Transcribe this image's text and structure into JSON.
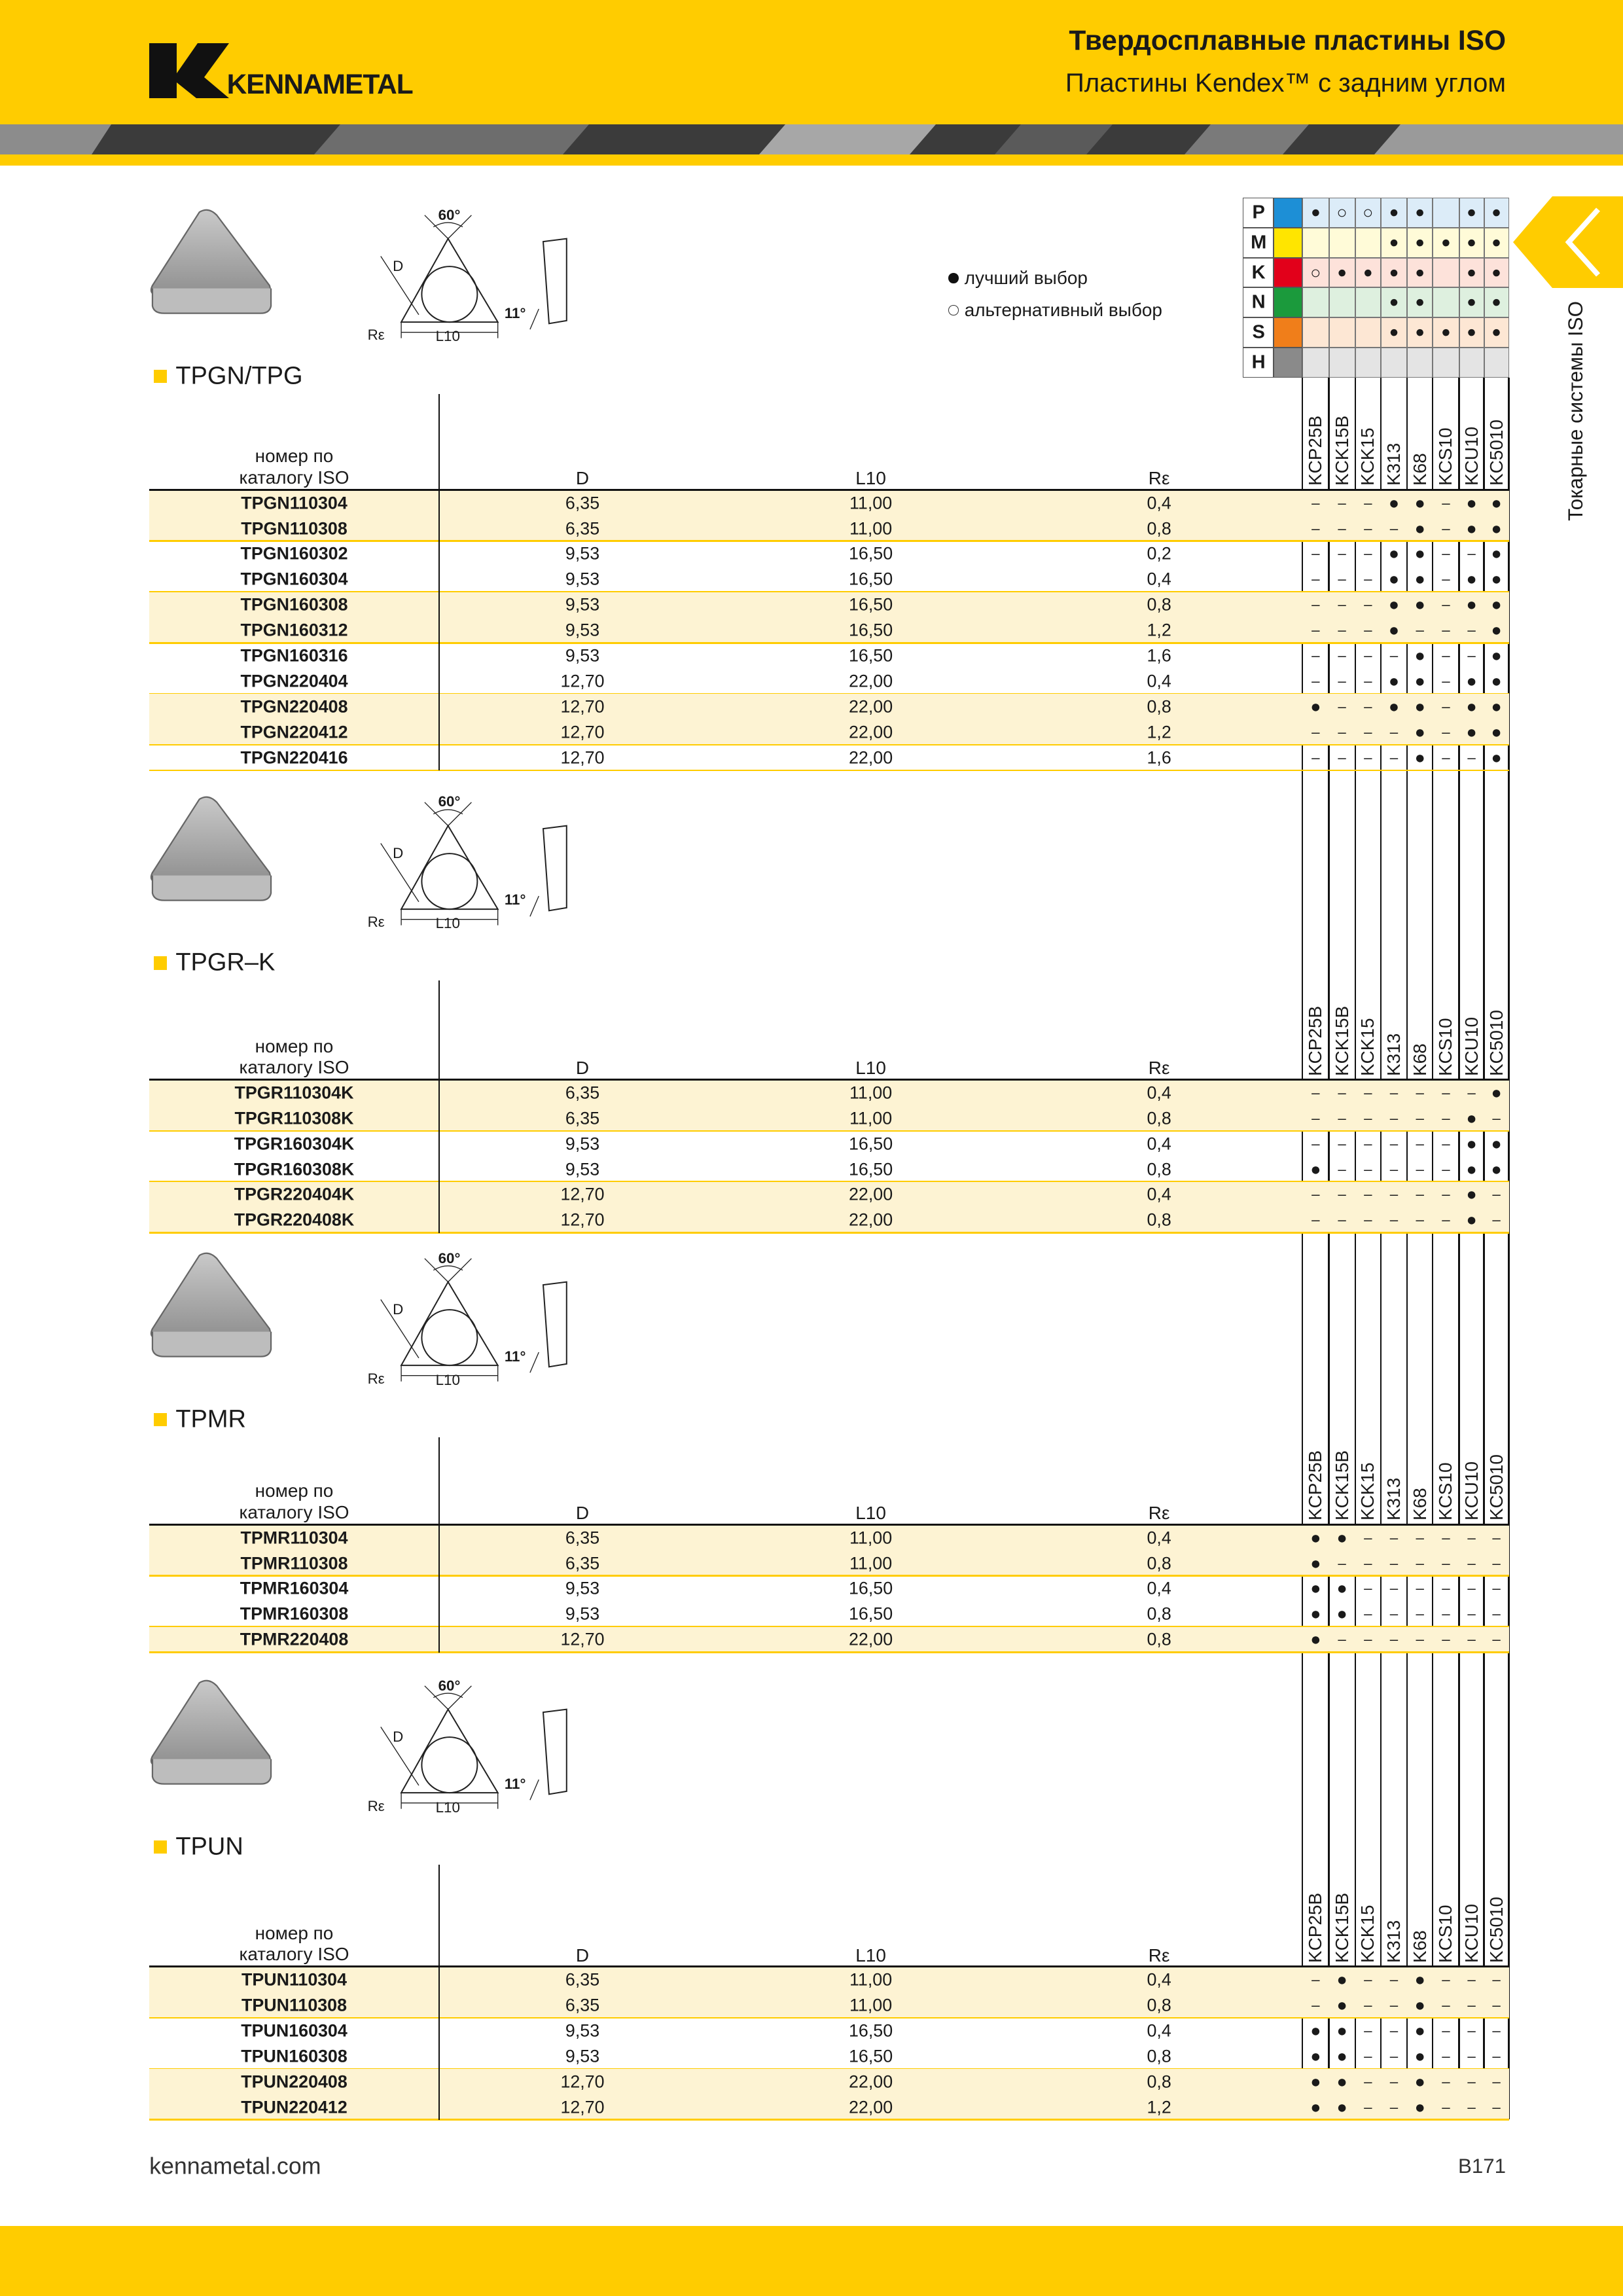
{
  "header": {
    "brand": "KENNAMETAL",
    "title": "Твердосплавные пластины ISO",
    "subtitle": "Пластины Kendex™ с задним углом"
  },
  "side_tab": "Токарные системы ISO",
  "legend": {
    "best": "лучший выбор",
    "alternative": "альтернативный выбор"
  },
  "grades": [
    "KCP25B",
    "KCK15B",
    "KCK15",
    "K313",
    "K68",
    "KCS10",
    "KCU10",
    "KC5010"
  ],
  "materials": [
    {
      "label": "P",
      "color": "#1d8fd6",
      "tint": "#dcecf8",
      "cells": [
        "●",
        "○",
        "○",
        "●",
        "●",
        null,
        "●",
        "●"
      ]
    },
    {
      "label": "M",
      "color": "#ffe500",
      "tint": "#fffbd8",
      "cells": [
        null,
        null,
        null,
        "●",
        "●",
        "●",
        "●",
        "●"
      ]
    },
    {
      "label": "K",
      "color": "#e2001a",
      "tint": "#fde2da",
      "cells": [
        "○",
        "●",
        "●",
        "●",
        "●",
        null,
        "●",
        "●"
      ]
    },
    {
      "label": "N",
      "color": "#1b9a3c",
      "tint": "#def0df",
      "cells": [
        null,
        null,
        null,
        "●",
        "●",
        null,
        "●",
        "●"
      ]
    },
    {
      "label": "S",
      "color": "#f07e1a",
      "tint": "#fde7d4",
      "cells": [
        null,
        null,
        null,
        "●",
        "●",
        "●",
        "●",
        "●"
      ]
    },
    {
      "label": "H",
      "color": "#8a8a8a",
      "tint": "#e4e4e4",
      "cells": [
        null,
        null,
        null,
        null,
        null,
        null,
        null,
        null
      ]
    }
  ],
  "diagram_labels": {
    "angle": "60°",
    "d": "D",
    "corner": "Rε",
    "length": "L10",
    "clearance": "11°"
  },
  "columns": {
    "name": "номер по каталогу ISO",
    "d": "D",
    "l10": "L10",
    "re": "Rε"
  },
  "sections": [
    {
      "title": "TPGN/TPG",
      "rows": [
        [
          "TPGN110304",
          "6,35",
          "11,00",
          "0,4",
          [
            "–",
            "–",
            "–",
            "●",
            "●",
            "–",
            "●",
            "●"
          ]
        ],
        [
          "TPGN110308",
          "6,35",
          "11,00",
          "0,8",
          [
            "–",
            "–",
            "–",
            "–",
            "●",
            "–",
            "●",
            "●"
          ]
        ],
        [
          "TPGN160302",
          "9,53",
          "16,50",
          "0,2",
          [
            "–",
            "–",
            "–",
            "●",
            "●",
            "–",
            "–",
            "●"
          ]
        ],
        [
          "TPGN160304",
          "9,53",
          "16,50",
          "0,4",
          [
            "–",
            "–",
            "–",
            "●",
            "●",
            "–",
            "●",
            "●"
          ]
        ],
        [
          "TPGN160308",
          "9,53",
          "16,50",
          "0,8",
          [
            "–",
            "–",
            "–",
            "●",
            "●",
            "–",
            "●",
            "●"
          ]
        ],
        [
          "TPGN160312",
          "9,53",
          "16,50",
          "1,2",
          [
            "–",
            "–",
            "–",
            "●",
            "–",
            "–",
            "–",
            "●"
          ]
        ],
        [
          "TPGN160316",
          "9,53",
          "16,50",
          "1,6",
          [
            "–",
            "–",
            "–",
            "–",
            "●",
            "–",
            "–",
            "●"
          ]
        ],
        [
          "TPGN220404",
          "12,70",
          "22,00",
          "0,4",
          [
            "–",
            "–",
            "–",
            "●",
            "●",
            "–",
            "●",
            "●"
          ]
        ],
        [
          "TPGN220408",
          "12,70",
          "22,00",
          "0,8",
          [
            "●",
            "–",
            "–",
            "●",
            "●",
            "–",
            "●",
            "●"
          ]
        ],
        [
          "TPGN220412",
          "12,70",
          "22,00",
          "1,2",
          [
            "–",
            "–",
            "–",
            "–",
            "●",
            "–",
            "●",
            "●"
          ]
        ],
        [
          "TPGN220416",
          "12,70",
          "22,00",
          "1,6",
          [
            "–",
            "–",
            "–",
            "–",
            "●",
            "–",
            "–",
            "●"
          ]
        ]
      ]
    },
    {
      "title": "TPGR–K",
      "rows": [
        [
          "TPGR110304K",
          "6,35",
          "11,00",
          "0,4",
          [
            "–",
            "–",
            "–",
            "–",
            "–",
            "–",
            "–",
            "●"
          ]
        ],
        [
          "TPGR110308K",
          "6,35",
          "11,00",
          "0,8",
          [
            "–",
            "–",
            "–",
            "–",
            "–",
            "–",
            "●",
            "–"
          ]
        ],
        [
          "TPGR160304K",
          "9,53",
          "16,50",
          "0,4",
          [
            "–",
            "–",
            "–",
            "–",
            "–",
            "–",
            "●",
            "●"
          ]
        ],
        [
          "TPGR160308K",
          "9,53",
          "16,50",
          "0,8",
          [
            "●",
            "–",
            "–",
            "–",
            "–",
            "–",
            "●",
            "●"
          ]
        ],
        [
          "TPGR220404K",
          "12,70",
          "22,00",
          "0,4",
          [
            "–",
            "–",
            "–",
            "–",
            "–",
            "–",
            "●",
            "–"
          ]
        ],
        [
          "TPGR220408K",
          "12,70",
          "22,00",
          "0,8",
          [
            "–",
            "–",
            "–",
            "–",
            "–",
            "–",
            "●",
            "–"
          ]
        ]
      ]
    },
    {
      "title": "TPMR",
      "rows": [
        [
          "TPMR110304",
          "6,35",
          "11,00",
          "0,4",
          [
            "●",
            "●",
            "–",
            "–",
            "–",
            "–",
            "–",
            "–"
          ]
        ],
        [
          "TPMR110308",
          "6,35",
          "11,00",
          "0,8",
          [
            "●",
            "–",
            "–",
            "–",
            "–",
            "–",
            "–",
            "–"
          ]
        ],
        [
          "TPMR160304",
          "9,53",
          "16,50",
          "0,4",
          [
            "●",
            "●",
            "–",
            "–",
            "–",
            "–",
            "–",
            "–"
          ]
        ],
        [
          "TPMR160308",
          "9,53",
          "16,50",
          "0,8",
          [
            "●",
            "●",
            "–",
            "–",
            "–",
            "–",
            "–",
            "–"
          ]
        ],
        [
          "TPMR220408",
          "12,70",
          "22,00",
          "0,8",
          [
            "●",
            "–",
            "–",
            "–",
            "–",
            "–",
            "–",
            "–"
          ]
        ]
      ]
    },
    {
      "title": "TPUN",
      "rows": [
        [
          "TPUN110304",
          "6,35",
          "11,00",
          "0,4",
          [
            "–",
            "●",
            "–",
            "–",
            "●",
            "–",
            "–",
            "–"
          ]
        ],
        [
          "TPUN110308",
          "6,35",
          "11,00",
          "0,8",
          [
            "–",
            "●",
            "–",
            "–",
            "●",
            "–",
            "–",
            "–"
          ]
        ],
        [
          "TPUN160304",
          "9,53",
          "16,50",
          "0,4",
          [
            "●",
            "●",
            "–",
            "–",
            "●",
            "–",
            "–",
            "–"
          ]
        ],
        [
          "TPUN160308",
          "9,53",
          "16,50",
          "0,8",
          [
            "●",
            "●",
            "–",
            "–",
            "●",
            "–",
            "–",
            "–"
          ]
        ],
        [
          "TPUN220408",
          "12,70",
          "22,00",
          "0,8",
          [
            "●",
            "●",
            "–",
            "–",
            "●",
            "–",
            "–",
            "–"
          ]
        ],
        [
          "TPUN220412",
          "12,70",
          "22,00",
          "1,2",
          [
            "●",
            "●",
            "–",
            "–",
            "●",
            "–",
            "–",
            "–"
          ]
        ]
      ]
    }
  ],
  "footer": {
    "site": "kennametal.com",
    "page": "B171"
  }
}
